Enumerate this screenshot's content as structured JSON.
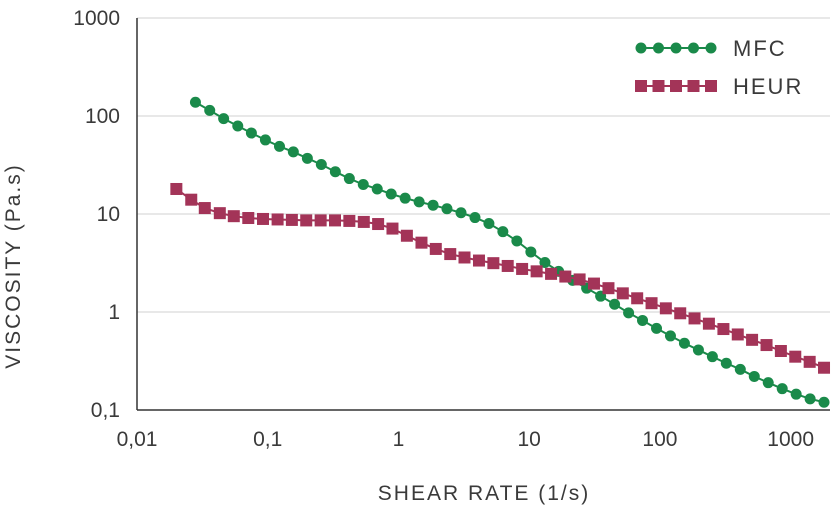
{
  "chart_data": {
    "type": "line",
    "xscale": "log",
    "yscale": "log",
    "xlabel": "SHEAR RATE (1/s)",
    "ylabel": "VISCOSITY (Pa.s)",
    "xlim": [
      0.01,
      2000
    ],
    "ylim": [
      0.1,
      1000
    ],
    "grid": "horizontal",
    "legend_position": "top-right",
    "x_ticks": [
      0.01,
      0.1,
      1,
      10,
      100,
      1000
    ],
    "x_tick_labels": [
      "0,01",
      "0,1",
      "1",
      "10",
      "100",
      "1000"
    ],
    "y_ticks": [
      0.1,
      1,
      10,
      100,
      1000
    ],
    "y_tick_labels": [
      "0,1",
      "1",
      "10",
      "100",
      "1000"
    ],
    "series": [
      {
        "name": "MFC",
        "color": "#1a8a4a",
        "marker": "circle",
        "x": [
          0.028,
          0.036,
          0.046,
          0.059,
          0.075,
          0.096,
          0.123,
          0.157,
          0.201,
          0.257,
          0.329,
          0.421,
          0.538,
          0.688,
          0.88,
          1.125,
          1.439,
          1.84,
          2.35,
          3.01,
          3.85,
          4.92,
          6.29,
          8.05,
          10.3,
          13.2,
          16.8,
          21.5,
          27.5,
          35.2,
          45.0,
          57.6,
          73.6,
          94.2,
          120.4,
          154,
          197,
          252,
          322,
          412,
          527,
          674,
          862,
          1102,
          1409,
          1800
        ],
        "y": [
          138,
          114,
          94,
          79,
          67,
          57,
          49,
          43,
          37,
          32,
          27,
          23,
          20,
          18,
          16,
          14.5,
          13.3,
          12.3,
          11.3,
          10.3,
          9.2,
          8,
          6.6,
          5.3,
          4.1,
          3.2,
          2.6,
          2.1,
          1.75,
          1.45,
          1.2,
          0.98,
          0.82,
          0.68,
          0.57,
          0.48,
          0.41,
          0.35,
          0.3,
          0.26,
          0.22,
          0.19,
          0.165,
          0.145,
          0.13,
          0.12
        ]
      },
      {
        "name": "HEUR",
        "color": "#a33458",
        "marker": "square",
        "x": [
          0.02,
          0.026,
          0.033,
          0.043,
          0.055,
          0.071,
          0.092,
          0.119,
          0.153,
          0.197,
          0.254,
          0.327,
          0.421,
          0.543,
          0.699,
          0.9,
          1.16,
          1.5,
          1.93,
          2.49,
          3.2,
          4.13,
          5.32,
          6.85,
          8.83,
          11.4,
          14.7,
          18.9,
          24.3,
          31.3,
          40.4,
          52,
          67,
          86.3,
          111,
          143,
          184,
          237,
          306,
          394,
          507,
          654,
          842,
          1085,
          1398,
          1800
        ],
        "y": [
          18,
          14,
          11.5,
          10.2,
          9.5,
          9.1,
          8.9,
          8.8,
          8.7,
          8.6,
          8.6,
          8.6,
          8.5,
          8.3,
          7.9,
          7.1,
          6,
          5.1,
          4.4,
          3.9,
          3.6,
          3.35,
          3.15,
          2.95,
          2.75,
          2.6,
          2.45,
          2.3,
          2.15,
          1.95,
          1.75,
          1.55,
          1.38,
          1.23,
          1.09,
          0.97,
          0.86,
          0.76,
          0.67,
          0.59,
          0.52,
          0.46,
          0.4,
          0.35,
          0.31,
          0.27
        ]
      }
    ]
  }
}
